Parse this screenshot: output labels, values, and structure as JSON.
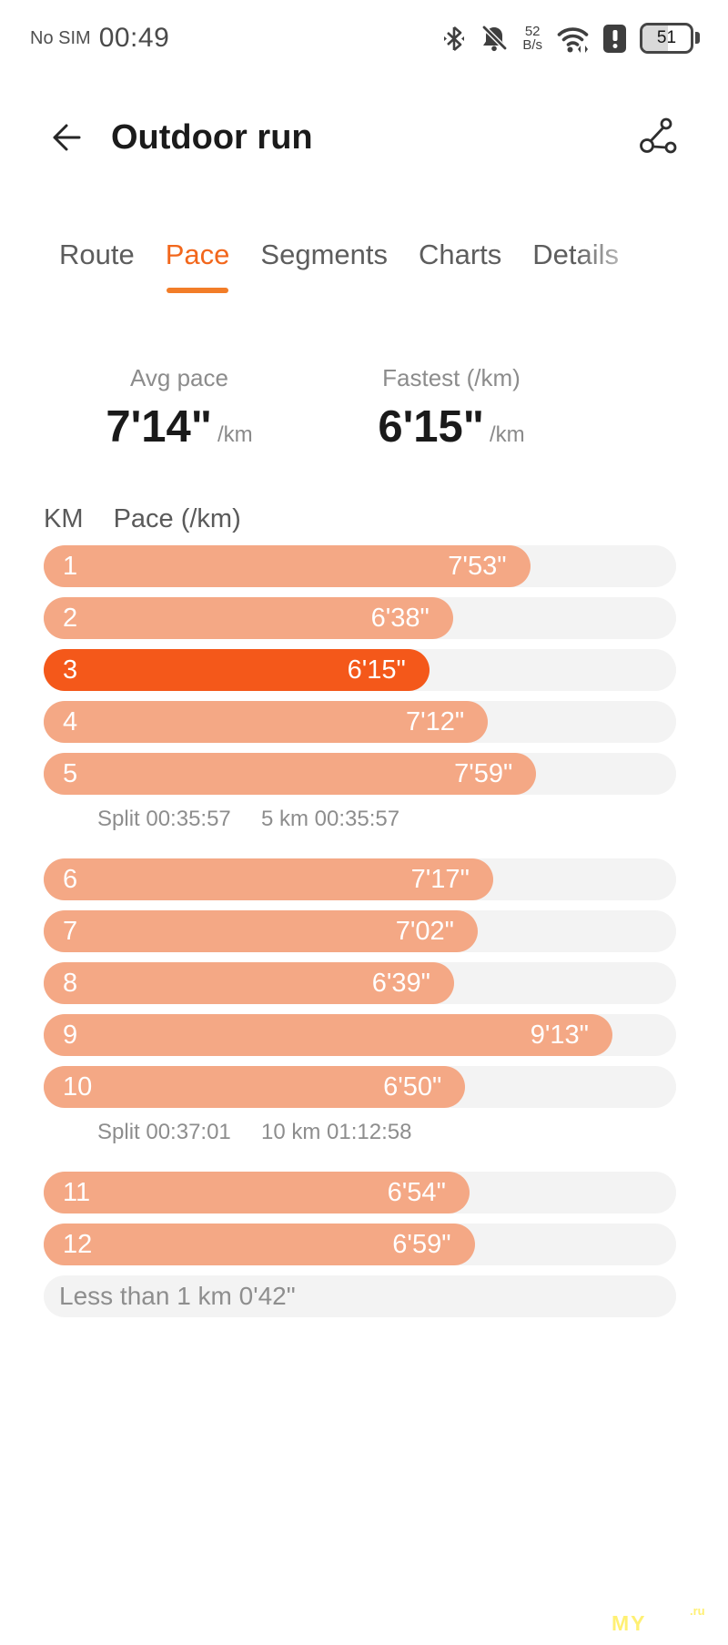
{
  "status_bar": {
    "carrier": "No SIM",
    "time": "00:49",
    "net_speed": {
      "value": "52",
      "unit": "B/s"
    },
    "battery_percent": "51"
  },
  "header": {
    "title": "Outdoor run"
  },
  "tabs": {
    "items": [
      {
        "label": "Route",
        "active": false
      },
      {
        "label": "Pace",
        "active": true
      },
      {
        "label": "Segments",
        "active": false
      },
      {
        "label": "Charts",
        "active": false
      },
      {
        "label": "Details",
        "active": false
      }
    ],
    "active_color": "#f2671c"
  },
  "summary": {
    "avg": {
      "label": "Avg pace",
      "value": "7'14\"",
      "unit": "/km"
    },
    "fastest": {
      "label": "Fastest (/km)",
      "value": "6'15\"",
      "unit": "/km"
    }
  },
  "chart_data": {
    "type": "bar",
    "col_km": "KM",
    "col_pace": "Pace (/km)",
    "full_width_seconds": 615,
    "colors": {
      "bar": "#f4a885",
      "bar_fastest": "#f4581a",
      "track": "#f3f3f3"
    },
    "rows": [
      {
        "type": "bar",
        "km": "1",
        "pace": "7'53\"",
        "seconds": 473,
        "fastest": false
      },
      {
        "type": "bar",
        "km": "2",
        "pace": "6'38\"",
        "seconds": 398,
        "fastest": false
      },
      {
        "type": "bar",
        "km": "3",
        "pace": "6'15\"",
        "seconds": 375,
        "fastest": true
      },
      {
        "type": "bar",
        "km": "4",
        "pace": "7'12\"",
        "seconds": 432,
        "fastest": false
      },
      {
        "type": "bar",
        "km": "5",
        "pace": "7'59\"",
        "seconds": 479,
        "fastest": false
      },
      {
        "type": "split",
        "split": "Split 00:35:57",
        "cumulative": "5 km 00:35:57"
      },
      {
        "type": "bar",
        "km": "6",
        "pace": "7'17\"",
        "seconds": 437,
        "fastest": false
      },
      {
        "type": "bar",
        "km": "7",
        "pace": "7'02\"",
        "seconds": 422,
        "fastest": false
      },
      {
        "type": "bar",
        "km": "8",
        "pace": "6'39\"",
        "seconds": 399,
        "fastest": false
      },
      {
        "type": "bar",
        "km": "9",
        "pace": "9'13\"",
        "seconds": 553,
        "fastest": false
      },
      {
        "type": "bar",
        "km": "10",
        "pace": "6'50\"",
        "seconds": 410,
        "fastest": false
      },
      {
        "type": "split",
        "split": "Split 00:37:01",
        "cumulative": "10 km 01:12:58"
      },
      {
        "type": "bar",
        "km": "11",
        "pace": "6'54\"",
        "seconds": 414,
        "fastest": false
      },
      {
        "type": "bar",
        "km": "12",
        "pace": "6'59\"",
        "seconds": 419,
        "fastest": false
      },
      {
        "type": "note",
        "label": "Less than 1 km 0'42\""
      }
    ]
  },
  "watermark": {
    "text": "MY",
    "suffix": ".ru"
  }
}
